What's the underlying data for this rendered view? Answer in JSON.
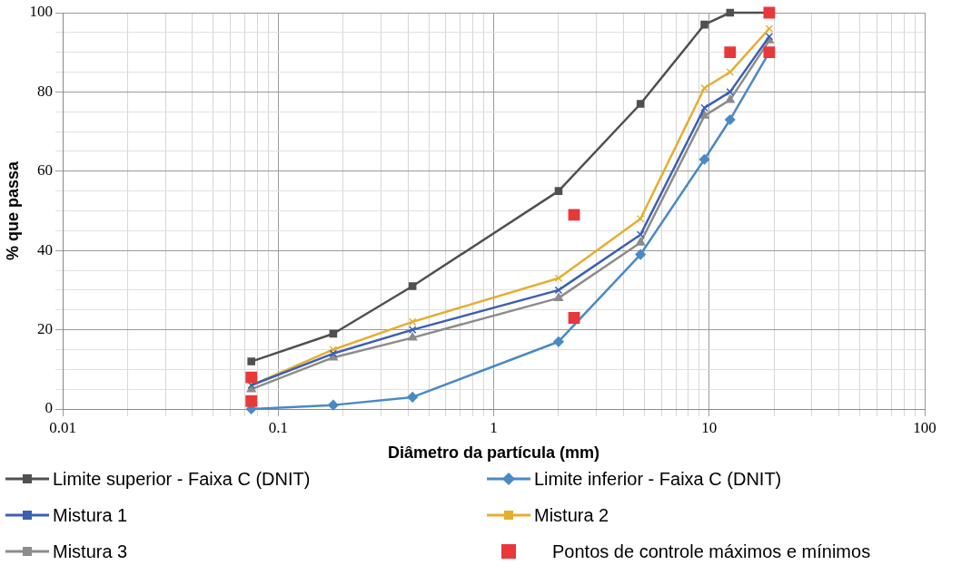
{
  "chart_data": {
    "type": "line",
    "xlabel": "Diâmetro da partícula (mm)",
    "ylabel": "% que passa",
    "log": "x",
    "grid": true,
    "legend": "bottom",
    "xlim": [
      0.01,
      100
    ],
    "xticks": [
      0.01,
      0.1,
      1,
      10,
      100
    ],
    "ylim": [
      0,
      100
    ],
    "yticks": [
      0,
      20,
      40,
      60,
      80,
      100
    ],
    "x": [
      0.075,
      0.18,
      0.42,
      2.0,
      4.8,
      9.5,
      12.5,
      19.0
    ],
    "series": [
      {
        "name": "Limite superior - Faixa C (DNIT)",
        "color": "#505050",
        "marker": "square",
        "values": [
          12,
          19,
          31,
          55,
          77,
          97,
          100,
          100
        ]
      },
      {
        "name": "Limite inferior - Faixa C (DNIT)",
        "color": "#4a8ac4",
        "marker": "diamond",
        "values": [
          0,
          1,
          3,
          17,
          39,
          63,
          73,
          90
        ]
      },
      {
        "name": "Mistura 1",
        "color": "#3c5fb4",
        "marker": "cross",
        "values": [
          6,
          14,
          20,
          30,
          44,
          76,
          80,
          94
        ]
      },
      {
        "name": "Mistura 2",
        "color": "#e6ae2e",
        "marker": "cross",
        "values": [
          6,
          15,
          22,
          33,
          48,
          81,
          85,
          96
        ]
      },
      {
        "name": "Mistura 3",
        "color": "#8c8c8c",
        "marker": "triangle",
        "values": [
          5,
          13,
          18,
          28,
          42,
          74,
          78,
          93
        ]
      },
      {
        "name": "Pontos de controle máximos e mínimos",
        "type": "scatter",
        "color": "#e8383a",
        "marker": "square",
        "x": [
          0.075,
          0.075,
          2.36,
          2.36,
          12.5,
          19.0,
          19.0
        ],
        "values": [
          2,
          8,
          23,
          49,
          90,
          90,
          100
        ]
      }
    ]
  }
}
